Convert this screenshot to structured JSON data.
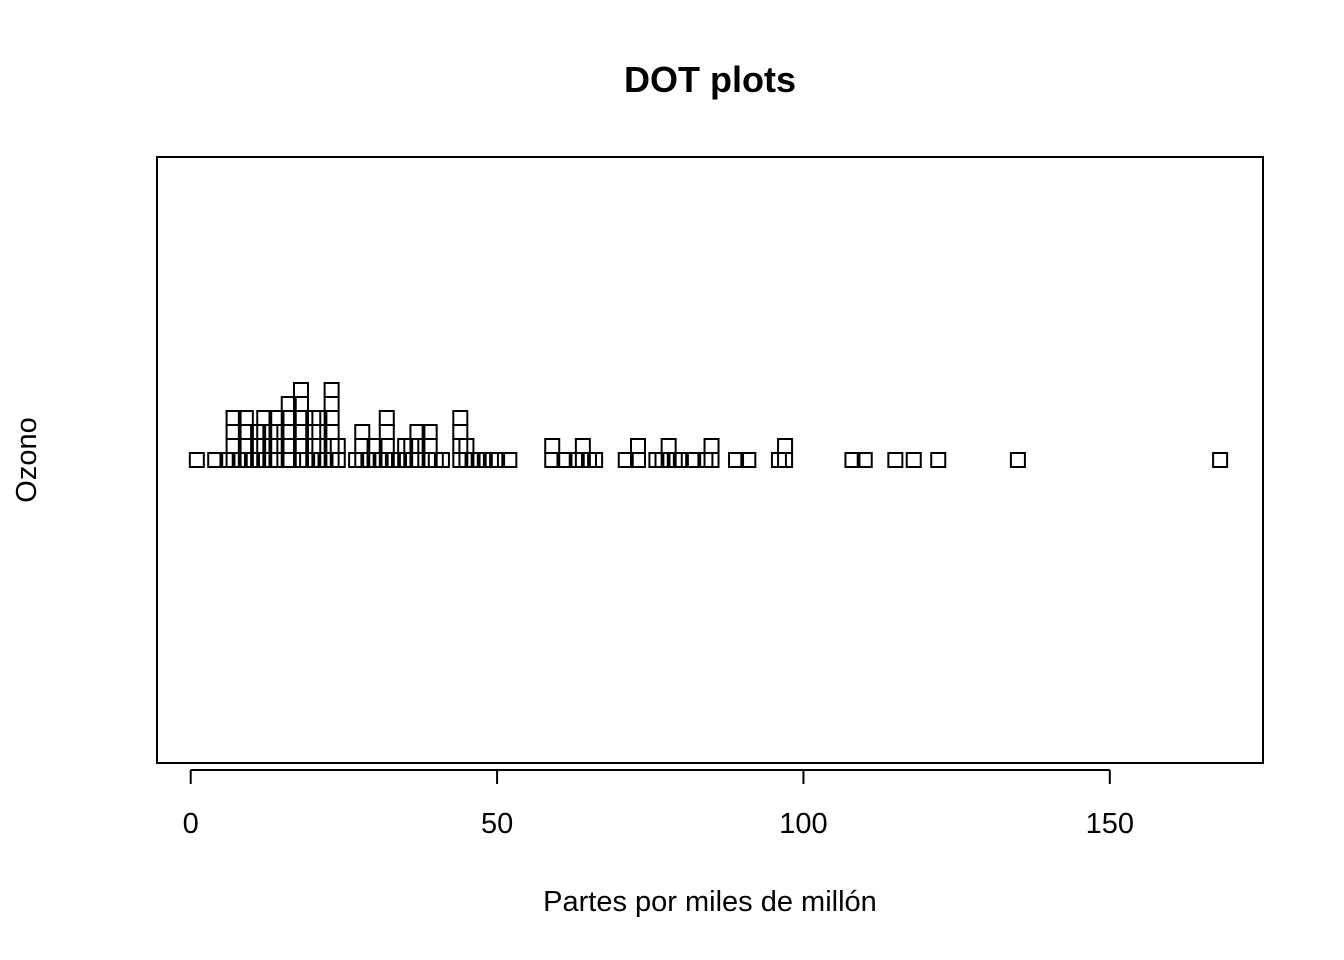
{
  "chart_data": {
    "type": "scatter",
    "subtype": "stacked-dot-plot",
    "title": "DOT plots",
    "xlabel": "Partes por miles de millón",
    "ylabel": "Ozono",
    "xlim": [
      -5.5,
      175
    ],
    "xticks": [
      0,
      50,
      100,
      150
    ],
    "xtick_labels": [
      "0",
      "50",
      "100",
      "150"
    ],
    "marker": "open-square",
    "grid": false,
    "legend": "none",
    "values": [
      1,
      4,
      6,
      7,
      7,
      7,
      7,
      8,
      9,
      9,
      9,
      9,
      10,
      11,
      11,
      11,
      12,
      12,
      12,
      12,
      13,
      13,
      13,
      14,
      14,
      14,
      14,
      16,
      16,
      16,
      16,
      16,
      18,
      18,
      18,
      18,
      18,
      18,
      19,
      20,
      20,
      20,
      20,
      21,
      21,
      21,
      21,
      22,
      23,
      23,
      23,
      23,
      23,
      23,
      24,
      24,
      27,
      28,
      28,
      28,
      29,
      30,
      30,
      31,
      32,
      32,
      32,
      32,
      33,
      34,
      35,
      35,
      36,
      36,
      37,
      37,
      37,
      39,
      39,
      39,
      40,
      41,
      44,
      44,
      44,
      44,
      45,
      45,
      46,
      47,
      48,
      49,
      50,
      52,
      59,
      59,
      61,
      63,
      64,
      64,
      65,
      66,
      71,
      73,
      73,
      76,
      77,
      78,
      78,
      79,
      80,
      82,
      84,
      85,
      85,
      89,
      91,
      96,
      97,
      97,
      108,
      110,
      115,
      118,
      122,
      135,
      168
    ]
  }
}
